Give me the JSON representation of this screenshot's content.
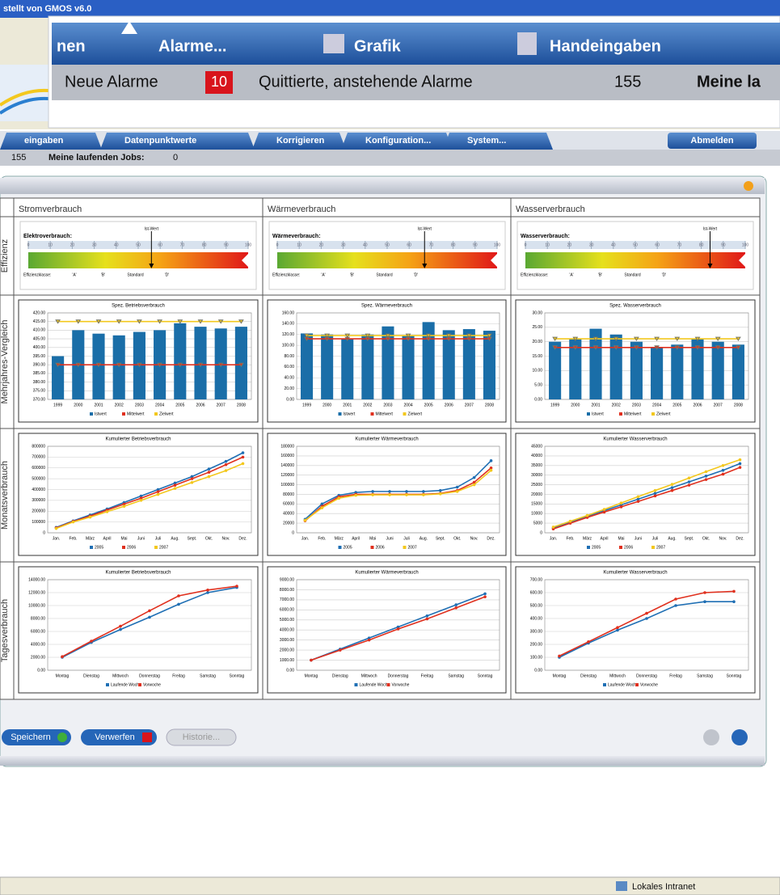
{
  "window": {
    "title": "stellt von GMOS v6.0"
  },
  "zoom": {
    "tabs": [
      "nen",
      "Alarme...",
      "Grafik",
      "Handeingaben"
    ],
    "new_alarms_label": "Neue Alarme",
    "new_alarms": 10,
    "ack_label": "Quittierte, anstehende Alarme",
    "ack": 155,
    "jobs_label": "Meine la"
  },
  "tabs": [
    "eingaben",
    "Datenpunktwerte",
    "Korrigieren",
    "Konfiguration...",
    "System..."
  ],
  "logout": "Abmelden",
  "status": {
    "ack": 155,
    "jobs_label": "Meine laufenden Jobs:",
    "jobs": 0
  },
  "columns": [
    "Stromverbrauch",
    "Wärmeverbrauch",
    "Wasserverbrauch"
  ],
  "rows": [
    "Effizienz",
    "Mehrjahres-Vergleich",
    "Monatsverbrauch",
    "Tagesverbrauch"
  ],
  "gauges": [
    {
      "label": "Elektroverbrauch:",
      "marker_label": "Ist-Wert",
      "classes_label": "Effizienzklasse:",
      "classes": [
        "'A'",
        "'B'",
        "Standard",
        "'D'"
      ],
      "xlim": [
        0,
        100
      ],
      "xticks": [
        0,
        10,
        20,
        30,
        40,
        50,
        60,
        70,
        80,
        90,
        100
      ],
      "value": 56
    },
    {
      "label": "Wärmeverbrauch:",
      "marker_label": "Ist-Wert",
      "classes_label": "Effizienzklasse:",
      "classes": [
        "'A'",
        "'B'",
        "Standard",
        "'D'"
      ],
      "xlim": [
        0,
        100
      ],
      "xticks": [
        0,
        10,
        20,
        30,
        40,
        50,
        60,
        70,
        80,
        90,
        100
      ],
      "value": 67
    },
    {
      "label": "Wasserverbrauch:",
      "marker_label": "Ist-Wert",
      "classes_label": "Effizienzklasse:",
      "classes": [
        "'A'",
        "'B'",
        "Standard",
        "'D'"
      ],
      "xlim": [
        0,
        100
      ],
      "xticks": [
        0,
        10,
        20,
        30,
        40,
        50,
        60,
        70,
        80,
        90,
        100
      ],
      "value": 84
    }
  ],
  "charts": [
    {
      "type": "bar",
      "title": "Spez. Betriebsverbrauch",
      "categories": [
        "1999",
        "2000",
        "2001",
        "2002",
        "2003",
        "2004",
        "2005",
        "2006",
        "2007",
        "2008"
      ],
      "ylim": [
        370,
        420
      ],
      "yticks": [
        {
          "value": 370,
          "label": "370.00"
        },
        {
          "value": 375,
          "label": "375.00"
        },
        {
          "value": 380,
          "label": "380.00"
        },
        {
          "value": 385,
          "label": "385.00"
        },
        {
          "value": 390,
          "label": "390.00"
        },
        {
          "value": 395,
          "label": "395.00"
        },
        {
          "value": 400,
          "label": "400.00"
        },
        {
          "value": 405,
          "label": "405.00"
        },
        {
          "value": 410,
          "label": "410.00"
        },
        {
          "value": 415,
          "label": "415.00"
        },
        {
          "value": 420,
          "label": "420.00"
        }
      ],
      "series": [
        {
          "name": "Istwert",
          "color": "#1a6ea8",
          "values": [
            395,
            410,
            408,
            407,
            409,
            410,
            414,
            412,
            411,
            412
          ]
        },
        {
          "name": "Mittelwert",
          "color": "#e0301e",
          "values": [
            390,
            390,
            390,
            390,
            390,
            390,
            390,
            390,
            390,
            390
          ]
        },
        {
          "name": "Zielwert",
          "color": "#f3c81e",
          "values": [
            415,
            415,
            415,
            415,
            415,
            415,
            415,
            415,
            415,
            415
          ]
        }
      ]
    },
    {
      "type": "bar",
      "title": "Spez. Wärmeverbrauch",
      "categories": [
        "1999",
        "2000",
        "2001",
        "2002",
        "2003",
        "2004",
        "2005",
        "2006",
        "2007",
        "2008"
      ],
      "ylim": [
        0,
        160
      ],
      "yticks": [
        {
          "value": 0,
          "label": "0.00"
        },
        {
          "value": 20,
          "label": "20.00"
        },
        {
          "value": 40,
          "label": "40.00"
        },
        {
          "value": 60,
          "label": "60.00"
        },
        {
          "value": 80,
          "label": "80.00"
        },
        {
          "value": 100,
          "label": "100.00"
        },
        {
          "value": 120,
          "label": "120.00"
        },
        {
          "value": 140,
          "label": "140.00"
        },
        {
          "value": 160,
          "label": "160.00"
        }
      ],
      "series": [
        {
          "name": "Istwert",
          "color": "#1a6ea8",
          "values": [
            122,
            120,
            112,
            120,
            135,
            118,
            143,
            128,
            130,
            127
          ]
        },
        {
          "name": "Mittelwert",
          "color": "#e0301e",
          "values": [
            112,
            112,
            112,
            112,
            112,
            112,
            112,
            112,
            112,
            112
          ]
        },
        {
          "name": "Zielwert",
          "color": "#f3c81e",
          "values": [
            118,
            118,
            118,
            118,
            118,
            118,
            118,
            118,
            118,
            118
          ]
        }
      ]
    },
    {
      "type": "bar",
      "title": "Spez. Wasserverbrauch",
      "categories": [
        "1999",
        "2000",
        "2001",
        "2002",
        "2003",
        "2004",
        "2005",
        "2006",
        "2007",
        "2008"
      ],
      "ylim": [
        0,
        30
      ],
      "yticks": [
        {
          "value": 0,
          "label": "0.00"
        },
        {
          "value": 5,
          "label": "5.00"
        },
        {
          "value": 10,
          "label": "10.00"
        },
        {
          "value": 15,
          "label": "15.00"
        },
        {
          "value": 20,
          "label": "20.00"
        },
        {
          "value": 25,
          "label": "25.00"
        },
        {
          "value": 30,
          "label": "30.00"
        }
      ],
      "series": [
        {
          "name": "Istwert",
          "color": "#1a6ea8",
          "values": [
            20,
            21,
            24.5,
            22.5,
            20,
            18,
            19,
            21,
            20,
            19
          ]
        },
        {
          "name": "Mittelwert",
          "color": "#e0301e",
          "values": [
            18,
            18,
            18,
            18,
            18,
            18,
            18,
            18,
            18,
            18
          ]
        },
        {
          "name": "Zielwert",
          "color": "#f3c81e",
          "values": [
            21,
            21,
            21,
            21,
            21,
            21,
            21,
            21,
            21,
            21
          ]
        }
      ]
    },
    {
      "type": "line",
      "title": "Kumulierter Betriebsverbrauch",
      "categories": [
        "Jan.",
        "Feb.",
        "März",
        "April",
        "Mai",
        "Juni",
        "Juli",
        "Aug.",
        "Sept.",
        "Okt.",
        "Nov.",
        "Dez."
      ],
      "ylim": [
        0,
        800000
      ],
      "yticks": [
        0,
        100000,
        200000,
        300000,
        400000,
        500000,
        600000,
        700000,
        800000
      ],
      "series": [
        {
          "name": "2005",
          "color": "#1f6fb4",
          "values": [
            50000,
            110000,
            165000,
            220000,
            280000,
            340000,
            400000,
            460000,
            520000,
            590000,
            660000,
            740000
          ]
        },
        {
          "name": "2006",
          "color": "#e0301e",
          "values": [
            45000,
            105000,
            155000,
            210000,
            265000,
            320000,
            380000,
            440000,
            500000,
            560000,
            630000,
            700000
          ]
        },
        {
          "name": "2007",
          "color": "#f3c81e",
          "values": [
            40000,
            100000,
            145000,
            195000,
            245000,
            300000,
            355000,
            410000,
            465000,
            520000,
            575000,
            640000
          ]
        }
      ]
    },
    {
      "type": "line",
      "title": "Kumulierter Wärmeverbrauch",
      "categories": [
        "Jan.",
        "Feb.",
        "März",
        "April",
        "Mai",
        "Juni",
        "Juli",
        "Aug.",
        "Sept.",
        "Okt.",
        "Nov.",
        "Dez."
      ],
      "ylim": [
        0,
        180000
      ],
      "yticks": [
        0,
        20000,
        40000,
        60000,
        80000,
        100000,
        120000,
        140000,
        160000,
        180000
      ],
      "series": [
        {
          "name": "2005",
          "color": "#1f6fb4",
          "values": [
            28000,
            60000,
            78000,
            84000,
            86000,
            86000,
            86000,
            86000,
            88000,
            95000,
            115000,
            150000
          ]
        },
        {
          "name": "2006",
          "color": "#e0301e",
          "values": [
            25000,
            55000,
            75000,
            80000,
            80000,
            80000,
            80000,
            80000,
            82000,
            88000,
            105000,
            135000
          ]
        },
        {
          "name": "2007",
          "color": "#f3c81e",
          "values": [
            26000,
            52000,
            72000,
            78000,
            79000,
            79000,
            79000,
            79000,
            81000,
            86000,
            100000,
            130000
          ]
        }
      ]
    },
    {
      "type": "line",
      "title": "Kumulierter Wasserverbrauch",
      "categories": [
        "Jan.",
        "Feb.",
        "März",
        "April",
        "Mai",
        "Juni",
        "Juli",
        "Aug.",
        "Sept.",
        "Okt.",
        "Nov.",
        "Dez."
      ],
      "ylim": [
        0,
        45000
      ],
      "yticks": [
        0,
        5000,
        10000,
        15000,
        20000,
        25000,
        30000,
        35000,
        40000,
        45000
      ],
      "series": [
        {
          "name": "2005",
          "color": "#1f6fb4",
          "values": [
            2500,
            5500,
            8500,
            11500,
            14500,
            17500,
            20500,
            23500,
            26500,
            29500,
            32500,
            36000
          ]
        },
        {
          "name": "2006",
          "color": "#e0301e",
          "values": [
            2000,
            5000,
            8000,
            10800,
            13500,
            16300,
            19200,
            22000,
            24800,
            27700,
            30500,
            34000
          ]
        },
        {
          "name": "2007",
          "color": "#f3c81e",
          "values": [
            3000,
            6000,
            9000,
            12200,
            15500,
            18800,
            22000,
            25200,
            28500,
            31800,
            35000,
            38000
          ]
        }
      ]
    },
    {
      "type": "line",
      "title": "Kumulierter Betriebsverbrauch",
      "categories": [
        "Montag",
        "Dienstag",
        "Mittwoch",
        "Donnerstag",
        "Freitag",
        "Samstag",
        "Sonntag"
      ],
      "ylim": [
        0,
        14000
      ],
      "yticks": [
        {
          "value": 0,
          "label": "0.00"
        },
        {
          "value": 2000,
          "label": "2000.00"
        },
        {
          "value": 4000,
          "label": "4000.00"
        },
        {
          "value": 6000,
          "label": "6000.00"
        },
        {
          "value": 8000,
          "label": "8000.00"
        },
        {
          "value": 10000,
          "label": "10000.00"
        },
        {
          "value": 12000,
          "label": "12000.00"
        },
        {
          "value": 14000,
          "label": "14000.00"
        }
      ],
      "series": [
        {
          "name": "Laufende Woche",
          "color": "#1f6fb4",
          "values": [
            2000,
            4300,
            6300,
            8200,
            10200,
            12000,
            12800
          ]
        },
        {
          "name": "Vorwoche",
          "color": "#e0301e",
          "values": [
            2100,
            4500,
            6800,
            9200,
            11500,
            12400,
            13000
          ]
        }
      ]
    },
    {
      "type": "line",
      "title": "Kumulierter Wärmeverbrauch",
      "categories": [
        "Montag",
        "Dienstag",
        "Mittwoch",
        "Donnerstag",
        "Freitag",
        "Samstag",
        "Sonntag"
      ],
      "ylim": [
        0,
        9000
      ],
      "yticks": [
        {
          "value": 0,
          "label": "0.00"
        },
        {
          "value": 1000,
          "label": "1000.00"
        },
        {
          "value": 2000,
          "label": "2000.00"
        },
        {
          "value": 3000,
          "label": "3000.00"
        },
        {
          "value": 4000,
          "label": "4000.00"
        },
        {
          "value": 5000,
          "label": "5000.00"
        },
        {
          "value": 6000,
          "label": "6000.00"
        },
        {
          "value": 7000,
          "label": "7000.00"
        },
        {
          "value": 8000,
          "label": "8000.00"
        },
        {
          "value": 9000,
          "label": "9000.00"
        }
      ],
      "series": [
        {
          "name": "Laufende Woche",
          "color": "#1f6fb4",
          "values": [
            1000,
            2100,
            3200,
            4300,
            5400,
            6500,
            7600
          ]
        },
        {
          "name": "Vorwoche",
          "color": "#e0301e",
          "values": [
            1000,
            2000,
            3000,
            4100,
            5100,
            6200,
            7300
          ]
        }
      ]
    },
    {
      "type": "line",
      "title": "Kumulierter Wasserverbrauch",
      "categories": [
        "Montag",
        "Dienstag",
        "Mittwoch",
        "Donnerstag",
        "Freitag",
        "Samstag",
        "Sonntag"
      ],
      "ylim": [
        0,
        700
      ],
      "yticks": [
        {
          "value": 0,
          "label": "0.00"
        },
        {
          "value": 100,
          "label": "100.00"
        },
        {
          "value": 200,
          "label": "200.00"
        },
        {
          "value": 300,
          "label": "300.00"
        },
        {
          "value": 400,
          "label": "400.00"
        },
        {
          "value": 500,
          "label": "500.00"
        },
        {
          "value": 600,
          "label": "600.00"
        },
        {
          "value": 700,
          "label": "700.00"
        }
      ],
      "series": [
        {
          "name": "Laufende Woche",
          "color": "#1f6fb4",
          "values": [
            100,
            210,
            310,
            400,
            500,
            530,
            530
          ]
        },
        {
          "name": "Vorwoche",
          "color": "#e0301e",
          "values": [
            110,
            220,
            330,
            440,
            550,
            600,
            610
          ]
        }
      ]
    }
  ],
  "buttons": [
    "Speichern",
    "Verwerfen",
    "Historie..."
  ],
  "statusbar": "Lokales Intranet"
}
